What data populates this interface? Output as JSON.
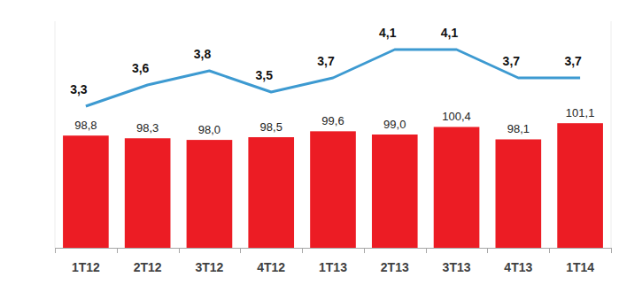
{
  "chart_data": {
    "type": "bar",
    "categories": [
      "1T12",
      "2T12",
      "3T12",
      "4T12",
      "1T13",
      "2T13",
      "3T13",
      "4T13",
      "1T14"
    ],
    "series": [
      {
        "type": "bar",
        "color": "#ec1c24",
        "values": [
          98.8,
          98.3,
          98.0,
          98.5,
          99.6,
          99.0,
          100.4,
          98.1,
          101.1
        ],
        "value_labels": [
          "98,8",
          "98,3",
          "98,0",
          "98,5",
          "99,6",
          "99,0",
          "100,4",
          "98,1",
          "101,1"
        ]
      },
      {
        "type": "line",
        "axis": "y2",
        "color": "#3d9ad1",
        "marker": "none",
        "line_style": "solid",
        "values": [
          3.3,
          3.6,
          3.8,
          3.5,
          3.7,
          4.1,
          4.1,
          3.7,
          3.7
        ],
        "value_labels": [
          "3,3",
          "3,6",
          "3,8",
          "3,5",
          "3,7",
          "4,1",
          "4,1",
          "3,7",
          "3,7"
        ]
      }
    ],
    "ylim": [
      78,
      120
    ],
    "y2lim": [
      1.3,
      4.5
    ],
    "data_labels": true,
    "tick_labels": "x",
    "grid": false
  }
}
